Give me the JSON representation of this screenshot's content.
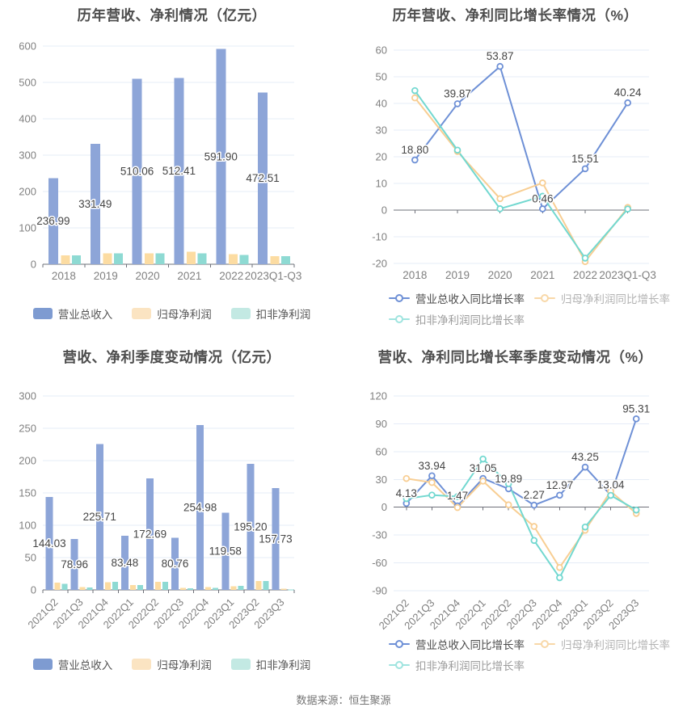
{
  "footer": {
    "source_note": "数据来源：恒生聚源"
  },
  "colors": {
    "background": "#ffffff",
    "title": "#4d4d4d",
    "axis_label": "#808080",
    "grid_line": "#e5ecf7",
    "axis_line": "#6e7079",
    "value_label": "#454545",
    "bar_blue": "#8da5d8",
    "bar_yellow": "#fcdca2",
    "bar_teal": "#8edad3",
    "line_blue": "#6e90d6",
    "line_yellow": "#f8ce93",
    "line_teal": "#72d8d0"
  },
  "chart_data": [
    {
      "type": "bar",
      "title": "历年营收、净利情况（亿元）",
      "ylim": [
        0,
        600
      ],
      "ytick_step": 100,
      "grid": true,
      "legend_position": "bottom",
      "categories": [
        "2018",
        "2019",
        "2020",
        "2021",
        "2022",
        "2023Q1-Q3"
      ],
      "series": [
        {
          "name": "营业总收入",
          "color": "#8da5d8",
          "legend_color": "#7e9bd1",
          "legend_label_color": "#555555",
          "labeled": true,
          "values": [
            236.99,
            331.49,
            510.06,
            512.41,
            591.9,
            472.51
          ]
        },
        {
          "name": "归母净利润",
          "color": "#fcdca2",
          "legend_color": "#fbe4c2",
          "legend_label_color": "#555555",
          "labeled": false,
          "values": [
            24.0,
            29.8,
            30.0,
            34.2,
            27.6,
            22.2
          ]
        },
        {
          "name": "扣非净利润",
          "color": "#8edad3",
          "legend_color": "#c3e9e3",
          "legend_label_color": "#555555",
          "labeled": false,
          "values": [
            24.4,
            30.0,
            29.8,
            30.4,
            25.3,
            22.7
          ]
        }
      ]
    },
    {
      "type": "line",
      "title": "历年营收、净利同比增长率情况（%）",
      "ylim": [
        -20,
        60
      ],
      "ytick_step": 10,
      "grid": true,
      "legend_position": "bottom",
      "categories": [
        "2018",
        "2019",
        "2020",
        "2021",
        "2022",
        "2023Q1-Q3"
      ],
      "series": [
        {
          "name": "营业总收入同比增长率",
          "color": "#6e90d6",
          "legend_color": "#6e90d6",
          "legend_label_color": "#4c4c4c",
          "labeled": true,
          "values": [
            18.8,
            39.87,
            53.87,
            0.46,
            15.51,
            40.24
          ]
        },
        {
          "name": "归母净利润同比增长率",
          "color": "#f8ce93",
          "legend_color": "#f8d8a8",
          "legend_label_color": "#b3b3b3",
          "labeled": false,
          "values": [
            42.1,
            22.0,
            4.3,
            10.2,
            -19.3,
            1.0
          ]
        },
        {
          "name": "扣非净利润同比增长率",
          "color": "#72d8d0",
          "legend_color": "#9fe4df",
          "legend_label_color": "#9c9c9c",
          "labeled": false,
          "values": [
            44.8,
            22.5,
            0.5,
            5.2,
            -18.0,
            0.4
          ]
        }
      ]
    },
    {
      "type": "bar",
      "title": "营收、净利季度变动情况（亿元）",
      "ylim": [
        0,
        300
      ],
      "ytick_step": 50,
      "grid": true,
      "legend_position": "bottom",
      "categories": [
        "2021Q2",
        "2021Q3",
        "2021Q4",
        "2022Q1",
        "2022Q2",
        "2022Q3",
        "2022Q4",
        "2023Q1",
        "2023Q2",
        "2023Q3"
      ],
      "series": [
        {
          "name": "营业总收入",
          "color": "#8da5d8",
          "legend_color": "#7e9bd1",
          "legend_label_color": "#555555",
          "labeled": true,
          "values": [
            144.03,
            78.96,
            225.71,
            83.48,
            172.69,
            80.76,
            254.98,
            119.58,
            195.2,
            157.73
          ]
        },
        {
          "name": "归母净利润",
          "color": "#fcdca2",
          "legend_color": "#fbe4c2",
          "legend_label_color": "#555555",
          "labeled": false,
          "values": [
            11.3,
            4.2,
            12.1,
            7.5,
            12.4,
            2.9,
            4.2,
            5.4,
            13.8,
            1.6
          ]
        },
        {
          "name": "扣非净利润",
          "color": "#8edad3",
          "legend_color": "#c3e9e3",
          "legend_label_color": "#555555",
          "labeled": false,
          "values": [
            9.2,
            4.0,
            12.4,
            7.2,
            12.8,
            2.2,
            2.9,
            6.1,
            13.8,
            0.8
          ]
        }
      ]
    },
    {
      "type": "line",
      "title": "营收、净利同比增长率季度变动情况（%）",
      "ylim": [
        -90,
        120
      ],
      "ytick_step": 30,
      "grid": true,
      "legend_position": "bottom",
      "categories": [
        "2021Q2",
        "2021Q3",
        "2021Q4",
        "2022Q1",
        "2022Q2",
        "2022Q3",
        "2022Q4",
        "2023Q1",
        "2023Q2",
        "2023Q3"
      ],
      "series": [
        {
          "name": "营业总收入同比增长率",
          "color": "#6e90d6",
          "legend_color": "#6e90d6",
          "legend_label_color": "#4c4c4c",
          "labeled": true,
          "values": [
            4.13,
            33.94,
            1.47,
            31.05,
            19.89,
            2.27,
            12.97,
            43.25,
            13.04,
            95.31
          ]
        },
        {
          "name": "归母净利润同比增长率",
          "color": "#f8ce93",
          "legend_color": "#f8d8a8",
          "legend_label_color": "#b3b3b3",
          "labeled": false,
          "values": [
            31.0,
            26.7,
            -0.3,
            28.2,
            2.6,
            -20.7,
            -65.0,
            -24.8,
            17.2,
            -6.7
          ]
        },
        {
          "name": "扣非净利润同比增长率",
          "color": "#72d8d0",
          "legend_color": "#9fe4df",
          "legend_label_color": "#9c9c9c",
          "labeled": false,
          "values": [
            9.3,
            13.1,
            11.5,
            52.0,
            25.4,
            -35.8,
            -76.0,
            -21.3,
            12.8,
            -3.0
          ]
        }
      ]
    }
  ]
}
